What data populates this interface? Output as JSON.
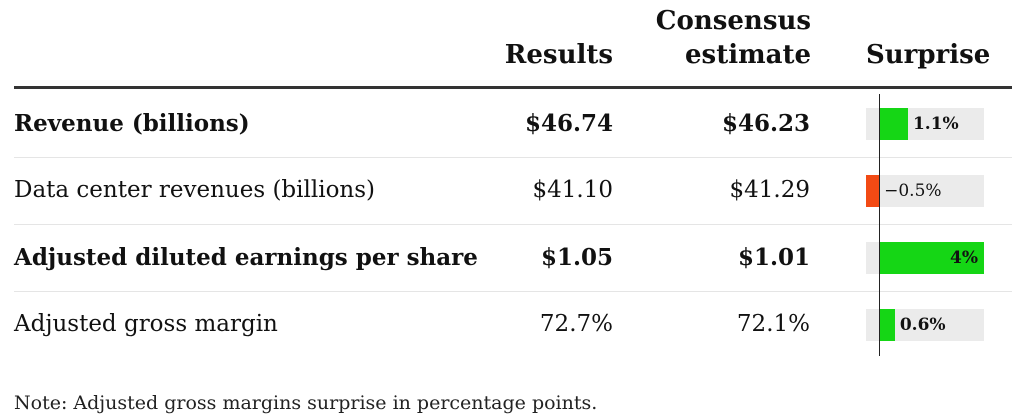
{
  "table": {
    "columns": {
      "results": "Results",
      "consensus_line1": "Consensus",
      "consensus_line2": "estimate",
      "surprise": "Surprise"
    },
    "rows": [
      {
        "label": "Revenue (billions)",
        "results": "$46.74",
        "consensus": "$46.23",
        "surprise_label": "1.1%",
        "surprise": 1.1,
        "bold": true
      },
      {
        "label": "Data center revenues (billions)",
        "results": "$41.10",
        "consensus": "$41.29",
        "surprise_label": "−0.5%",
        "surprise": -0.5,
        "bold": false
      },
      {
        "label": "Adjusted diluted earnings per share",
        "results": "$1.05",
        "consensus": "$1.01",
        "surprise_label": "4%",
        "surprise": 4.0,
        "bold": true
      },
      {
        "label": "Adjusted gross margin",
        "results": "72.7%",
        "consensus": "72.1%",
        "surprise_label": "0.6%",
        "surprise": 0.6,
        "bold": false
      }
    ],
    "note": "Note: Adjusted gross margins surprise in percentage points."
  },
  "colors": {
    "positive": "#15d615",
    "negative": "#f24a14",
    "track": "#ebebeb"
  },
  "chart_data": {
    "type": "table",
    "categories": [
      "Revenue (billions)",
      "Data center revenues (billions)",
      "Adjusted diluted earnings per share",
      "Adjusted gross margin"
    ],
    "series": [
      {
        "name": "Surprise",
        "values": [
          1.1,
          -0.5,
          4.0,
          0.6
        ]
      }
    ],
    "xlim": [
      -0.5,
      4.0
    ]
  }
}
